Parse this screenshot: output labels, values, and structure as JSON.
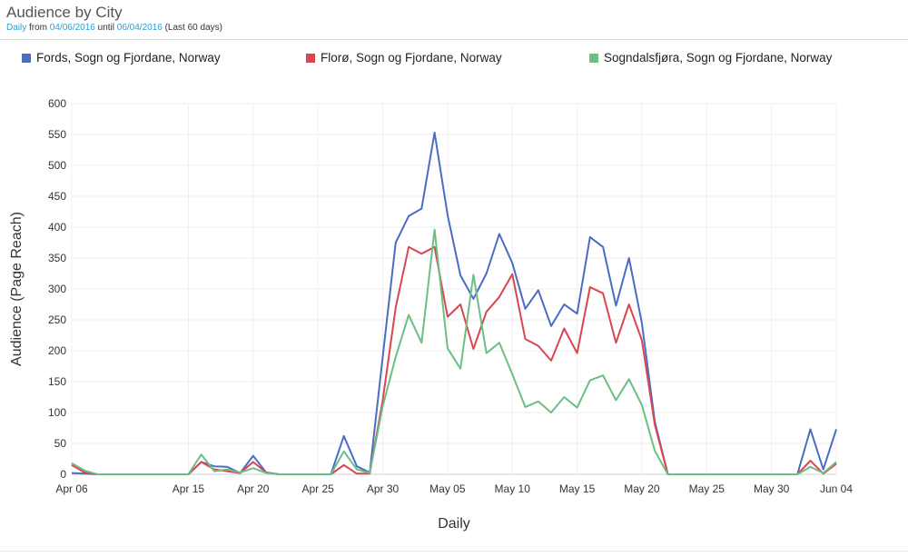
{
  "header": {
    "title": "Audience by City",
    "period_label": "Daily",
    "from_text": " from ",
    "from_date": "04/06/2016",
    "until_text": " until ",
    "until_date": "06/04/2016",
    "range_note": " (Last 60 days)"
  },
  "chart_data": {
    "type": "line",
    "xlabel": "Daily",
    "ylabel": "Audience (Page Reach)",
    "ylim": [
      0,
      600
    ],
    "yticks": [
      0,
      50,
      100,
      150,
      200,
      250,
      300,
      350,
      400,
      450,
      500,
      550,
      600
    ],
    "x_tick_labels": [
      "Apr 06",
      "Apr 15",
      "Apr 20",
      "Apr 25",
      "Apr 30",
      "May 05",
      "May 10",
      "May 15",
      "May 20",
      "May 25",
      "May 30",
      "Jun 04"
    ],
    "x": [
      "Apr 06",
      "Apr 07",
      "Apr 08",
      "Apr 09",
      "Apr 10",
      "Apr 11",
      "Apr 12",
      "Apr 13",
      "Apr 14",
      "Apr 15",
      "Apr 16",
      "Apr 17",
      "Apr 18",
      "Apr 19",
      "Apr 20",
      "Apr 21",
      "Apr 22",
      "Apr 23",
      "Apr 24",
      "Apr 25",
      "Apr 26",
      "Apr 27",
      "Apr 28",
      "Apr 29",
      "Apr 30",
      "May 01",
      "May 02",
      "May 03",
      "May 04",
      "May 05",
      "May 06",
      "May 07",
      "May 08",
      "May 09",
      "May 10",
      "May 11",
      "May 12",
      "May 13",
      "May 14",
      "May 15",
      "May 16",
      "May 17",
      "May 18",
      "May 19",
      "May 20",
      "May 21",
      "May 22",
      "May 23",
      "May 24",
      "May 25",
      "May 26",
      "May 27",
      "May 28",
      "May 29",
      "May 30",
      "May 31",
      "Jun 01",
      "Jun 02",
      "Jun 03",
      "Jun 04"
    ],
    "legend_position": "top",
    "grid": true,
    "series": [
      {
        "name": "Fords, Sogn og Fjordane, Norway",
        "color": "#4a6cc4",
        "values": [
          2,
          1,
          0,
          0,
          0,
          0,
          0,
          0,
          0,
          0,
          20,
          13,
          12,
          2,
          30,
          3,
          0,
          0,
          0,
          0,
          0,
          62,
          13,
          3,
          190,
          375,
          418,
          430,
          553,
          420,
          322,
          284,
          325,
          389,
          342,
          268,
          298,
          240,
          275,
          260,
          384,
          368,
          273,
          350,
          245,
          85,
          0,
          0,
          0,
          0,
          0,
          0,
          0,
          0,
          0,
          0,
          0,
          73,
          8,
          73
        ]
      },
      {
        "name": "Florø, Sogn og Fjordane, Norway",
        "color": "#d9464f",
        "values": [
          15,
          3,
          0,
          0,
          0,
          0,
          0,
          0,
          0,
          0,
          20,
          8,
          5,
          2,
          20,
          3,
          0,
          0,
          0,
          0,
          0,
          15,
          1,
          1,
          120,
          270,
          368,
          357,
          368,
          255,
          275,
          203,
          263,
          287,
          324,
          219,
          208,
          184,
          236,
          196,
          303,
          293,
          213,
          275,
          217,
          80,
          0,
          0,
          0,
          0,
          0,
          0,
          0,
          0,
          0,
          0,
          0,
          22,
          1,
          17
        ]
      },
      {
        "name": "Sogndalsfjøra, Sogn og Fjordane, Norway",
        "color": "#6cbf84",
        "values": [
          18,
          6,
          0,
          0,
          0,
          0,
          0,
          0,
          0,
          0,
          32,
          5,
          8,
          3,
          10,
          2,
          0,
          0,
          0,
          0,
          0,
          37,
          8,
          2,
          110,
          190,
          258,
          213,
          396,
          204,
          171,
          323,
          196,
          213,
          162,
          109,
          118,
          100,
          125,
          108,
          152,
          160,
          120,
          154,
          112,
          38,
          0,
          0,
          0,
          0,
          0,
          0,
          0,
          0,
          0,
          0,
          0,
          12,
          2,
          20
        ]
      }
    ]
  }
}
